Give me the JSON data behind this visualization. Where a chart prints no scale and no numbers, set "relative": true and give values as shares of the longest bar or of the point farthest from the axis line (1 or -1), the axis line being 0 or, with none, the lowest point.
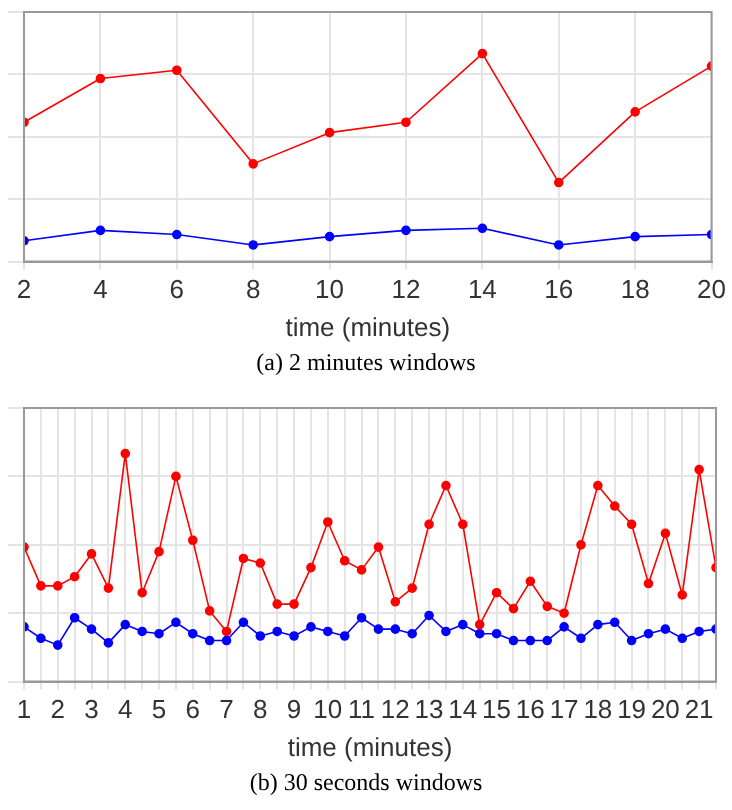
{
  "chart_data": [
    {
      "type": "line",
      "title": "(a)  2 minutes windows",
      "xlabel": "time (minutes)",
      "relative": true,
      "grid": true,
      "marker": "circle",
      "line_style": "solid",
      "x": [
        2,
        4,
        6,
        8,
        10,
        12,
        14,
        16,
        18,
        20
      ],
      "xlim": [
        2,
        20
      ],
      "xticks": [
        2,
        4,
        6,
        8,
        10,
        12,
        14,
        16,
        18,
        20
      ],
      "series": [
        {
          "color": "#ff0000",
          "values": [
            0.67,
            0.88,
            0.92,
            0.47,
            0.62,
            0.67,
            1,
            0.38,
            0.72,
            0.94
          ]
        },
        {
          "color": "#0000ff",
          "values": [
            0.1,
            0.15,
            0.13,
            0.08,
            0.12,
            0.15,
            0.16,
            0.08,
            0.12,
            0.13
          ]
        }
      ]
    },
    {
      "type": "line",
      "title": "(b)  30 seconds windows",
      "xlabel": "time (minutes)",
      "relative": true,
      "grid": true,
      "marker": "circle",
      "line_style": "solid",
      "x": [
        1,
        1.5,
        2,
        2.5,
        3,
        3.5,
        4,
        4.5,
        5,
        5.5,
        6,
        6.5,
        7,
        7.5,
        8,
        8.5,
        9,
        9.5,
        10,
        10.5,
        11,
        11.5,
        12,
        12.5,
        13,
        13.5,
        14,
        14.5,
        15,
        15.5,
        16,
        16.5,
        17,
        17.5,
        18,
        18.5,
        19,
        19.5,
        20,
        20.5,
        21,
        21.5
      ],
      "xlim": [
        1,
        21.5
      ],
      "xticks": [
        1,
        {
          "value": 1.5,
          "label": null
        },
        2,
        {
          "value": 2.5,
          "label": null
        },
        3,
        {
          "value": 3.5,
          "label": null
        },
        4,
        {
          "value": 4.5,
          "label": null
        },
        5,
        {
          "value": 5.5,
          "label": null
        },
        6,
        {
          "value": 6.5,
          "label": null
        },
        7,
        {
          "value": 7.5,
          "label": null
        },
        8,
        {
          "value": 8.5,
          "label": null
        },
        9,
        {
          "value": 9.5,
          "label": null
        },
        10,
        {
          "value": 10.5,
          "label": null
        },
        11,
        {
          "value": 11.5,
          "label": null
        },
        12,
        {
          "value": 12.5,
          "label": null
        },
        13,
        {
          "value": 13.5,
          "label": null
        },
        14,
        {
          "value": 14.5,
          "label": null
        },
        15,
        {
          "value": 15.5,
          "label": null
        },
        16,
        {
          "value": 16.5,
          "label": null
        },
        17,
        {
          "value": 17.5,
          "label": null
        },
        18,
        {
          "value": 18.5,
          "label": null
        },
        19,
        {
          "value": 19.5,
          "label": null
        },
        20,
        {
          "value": 20.5,
          "label": null
        },
        21,
        {
          "value": 21.5,
          "label": null
        }
      ],
      "series": [
        {
          "color": "#ff0000",
          "values": [
            0.59,
            0.42,
            0.42,
            0.46,
            0.56,
            0.41,
            1,
            0.39,
            0.57,
            0.9,
            0.62,
            0.31,
            0.22,
            0.54,
            0.52,
            0.34,
            0.34,
            0.5,
            0.7,
            0.53,
            0.49,
            0.59,
            0.35,
            0.41,
            0.69,
            0.86,
            0.69,
            0.25,
            0.39,
            0.32,
            0.44,
            0.33,
            0.3,
            0.6,
            0.86,
            0.77,
            0.69,
            0.43,
            0.65,
            0.38,
            0.93,
            0.5
          ]
        },
        {
          "color": "#0000ff",
          "values": [
            0.24,
            0.19,
            0.16,
            0.28,
            0.23,
            0.17,
            0.25,
            0.22,
            0.21,
            0.26,
            0.21,
            0.18,
            0.18,
            0.26,
            0.2,
            0.22,
            0.2,
            0.24,
            0.22,
            0.2,
            0.28,
            0.23,
            0.23,
            0.21,
            0.29,
            0.22,
            0.25,
            0.21,
            0.21,
            0.18,
            0.18,
            0.18,
            0.24,
            0.19,
            0.25,
            0.26,
            0.18,
            0.21,
            0.23,
            0.19,
            0.22,
            0.23
          ]
        }
      ]
    }
  ]
}
